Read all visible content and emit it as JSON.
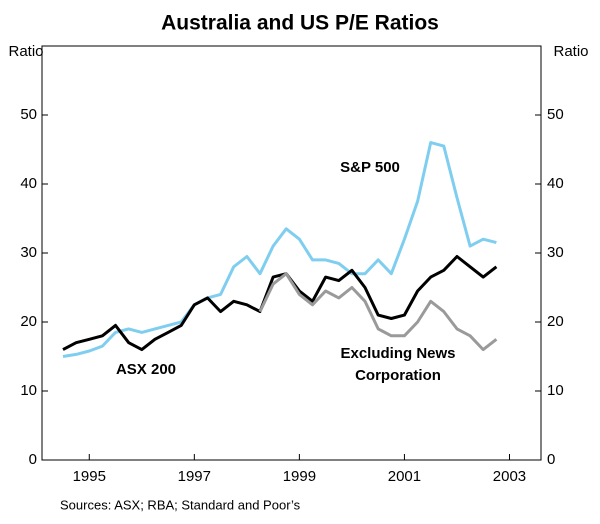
{
  "chart_data": {
    "type": "line",
    "title": "Australia and US P/E Ratios",
    "y_label": "Ratio",
    "y2_label": "Ratio",
    "source": "Sources: ASX; RBA; Standard and Poor’s",
    "annotations": [
      "S&P 500",
      "ASX 200",
      "Excluding News",
      "Corporation"
    ],
    "x": [
      1994.5,
      1994.75,
      1995,
      1995.25,
      1995.5,
      1995.75,
      1996,
      1996.25,
      1996.5,
      1996.75,
      1997,
      1997.25,
      1997.5,
      1997.75,
      1998,
      1998.25,
      1998.5,
      1998.75,
      1999,
      1999.25,
      1999.5,
      1999.75,
      2000,
      2000.25,
      2000.5,
      2000.75,
      2001,
      2001.25,
      2001.5,
      2001.75,
      2002,
      2002.25,
      2002.5,
      2002.75
    ],
    "series": [
      {
        "name": "S&P 500",
        "color": "#7fcef0",
        "values": [
          15,
          15.3,
          15.8,
          16.5,
          18.5,
          19,
          18.5,
          19,
          19.5,
          20,
          22.5,
          23.5,
          24,
          28,
          29.5,
          27,
          31,
          33.5,
          32,
          29,
          29,
          28.5,
          27,
          27,
          29,
          27,
          32,
          37.5,
          46,
          45.5,
          38,
          31,
          32,
          31.5
        ]
      },
      {
        "name": "ASX 200",
        "color": "#000000",
        "values": [
          16,
          17,
          17.5,
          18,
          19.5,
          17,
          16,
          17.5,
          18.5,
          19.5,
          22.5,
          23.5,
          21.5,
          23,
          22.5,
          21.5,
          26.5,
          27,
          24.5,
          23,
          26.5,
          26,
          27.5,
          25,
          21,
          20.5,
          21,
          24.5,
          26.5,
          27.5,
          29.5,
          28,
          26.5,
          28
        ]
      },
      {
        "name": "Excluding News Corporation",
        "color": "#9a9a9a",
        "values": [
          null,
          null,
          null,
          null,
          null,
          null,
          null,
          null,
          null,
          null,
          null,
          null,
          null,
          null,
          null,
          21.5,
          25.5,
          27,
          24,
          22.5,
          24.5,
          23.5,
          25,
          23,
          19,
          18,
          18,
          20,
          23,
          21.5,
          19,
          18,
          16,
          17.5
        ]
      }
    ],
    "xlim": [
      1994.1,
      2003.6
    ],
    "xticks": [
      1995,
      1997,
      1999,
      2001,
      2003
    ],
    "ylim": [
      0,
      60
    ],
    "yticks": [
      0,
      10,
      20,
      30,
      40,
      50
    ],
    "y2lim": [
      0,
      60
    ],
    "y2ticks": [
      0,
      10,
      20,
      30,
      40,
      50
    ]
  }
}
